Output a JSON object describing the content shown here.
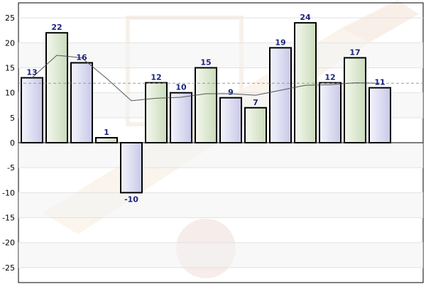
{
  "chart_data": {
    "type": "bar",
    "title": "",
    "xlabel": "",
    "ylabel": "",
    "ylim": [
      -28,
      28
    ],
    "yticks": [
      -25,
      -20,
      -15,
      -10,
      -5,
      0,
      5,
      10,
      15,
      20,
      25
    ],
    "values": [
      13,
      22,
      16,
      1,
      -10,
      12,
      10,
      15,
      9,
      7,
      19,
      24,
      12,
      17,
      11
    ],
    "value_labels": [
      "13",
      "22",
      "16",
      "1",
      "-10",
      "12",
      "10",
      "15",
      "9",
      "7",
      "19",
      "24",
      "12",
      "17",
      "11"
    ],
    "bar_fill_pattern": [
      "lavender",
      "green",
      "lavender",
      "green",
      "lavender",
      "green",
      "lavender",
      "green",
      "lavender",
      "green",
      "lavender",
      "green",
      "lavender",
      "green",
      "lavender"
    ],
    "moving_average": [
      13,
      17.5,
      17,
      12.9,
      8.4,
      8.9,
      9.1,
      9.8,
      9.8,
      9.5,
      10.5,
      11.5,
      11.6,
      12,
      11.9
    ],
    "average_line": 11.9,
    "grid": true,
    "legend": "none",
    "colors": {
      "bar_lavender": "#d8d8f0",
      "bar_green": "#dce8d2",
      "bar_border": "#000000",
      "moving_average_line": "#555555",
      "average_line": "#9a9a9a",
      "label_color": "#1a237e"
    }
  }
}
